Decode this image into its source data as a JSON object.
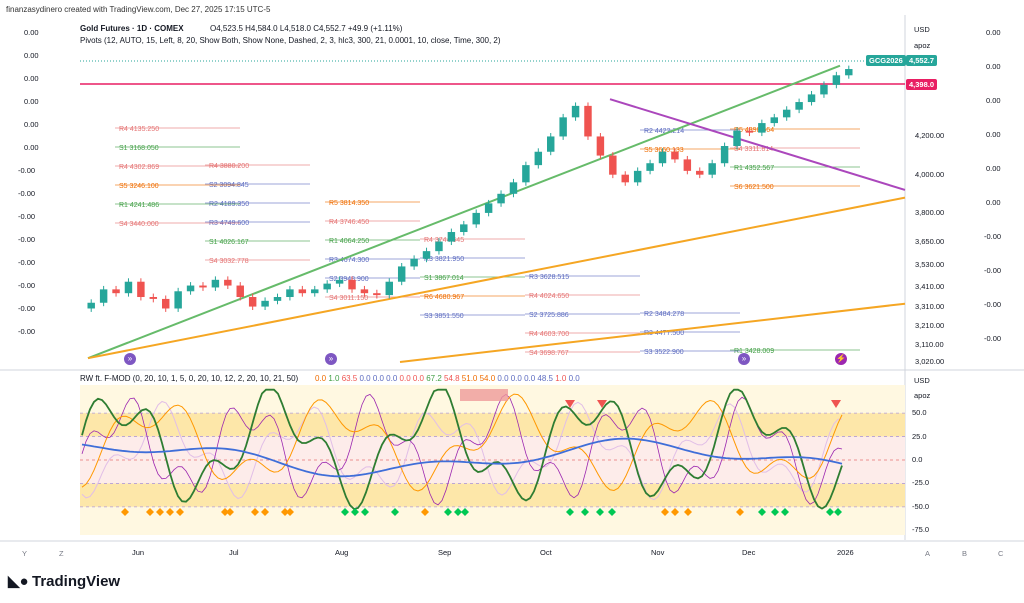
{
  "header": {
    "created_by": "finanzasydinero created with TradingView.com, Dec 27, 2025 17:15 UTC-5",
    "symbol_line": "Gold Futures · 1D · COMEX",
    "ohlc": "O4,523.5  H4,584.0  L4,518.0  C4,552.7  +49.9 (+1.11%)",
    "pivots_line": "Pivots (12, AUTO, 15, Left, 8, 20, Show Both, Show None, Dashed, 2, 3, hlc3, 300, 21, 0.0001, 10, close, Time, 300, 2)",
    "indicator_line": "RW ft. F-MOD (0, 20, 10, 1, 5, 0, 20, 10, 12, 2, 20, 10, 21, 50)",
    "indicator_values": [
      "0.0",
      "1.0",
      "63.5",
      "0.0",
      "0.0",
      "0.0",
      "0.0",
      "0.0",
      "67.2",
      "54.8",
      "51.0",
      "54.0",
      "0.0",
      "0.0",
      "0.0",
      "48.5",
      "1.0",
      "0.0"
    ]
  },
  "scale": {
    "currency": "USD",
    "mode": "apoz",
    "price_ticks": [
      "4,200.00",
      "4,000.00",
      "3,800.00",
      "3,650.00",
      "3,530.00",
      "3,410.00",
      "3,310.00",
      "3,210.00",
      "3,110.00",
      "3,020.00"
    ],
    "osc_ticks": [
      "50.0",
      "25.0",
      "0.0",
      "-25.0",
      "-50.0",
      "-75.0"
    ],
    "symbol_badge": "GCG2026",
    "last_price_badge": "4,552.7",
    "marker_price_badge": "4,398.0",
    "left_values": [
      "0.00",
      "0.00",
      "0.00",
      "0.00",
      "0.00",
      "0.00",
      "-0.00",
      "-0.00",
      "-0.00",
      "-0.00",
      "-0.00",
      "-0.00",
      "-0.00",
      "-0.00"
    ],
    "right_values": [
      "0.00",
      "0.00",
      "0.00",
      "0.00",
      "0.00",
      "0.00",
      "-0.00",
      "-0.00",
      "-0.00",
      "-0.00"
    ]
  },
  "time_axis": [
    "Jun",
    "Jul",
    "Aug",
    "Sep",
    "Oct",
    "Nov",
    "Dec",
    "2026"
  ],
  "bottom_icons": [
    "Y",
    "Z",
    "A",
    "B",
    "C"
  ],
  "brand": "TradingView",
  "pivot_labels": [
    {
      "t": "R4",
      "v": "4135.250",
      "c": "#e57373"
    },
    {
      "t": "R4",
      "v": "3880.200",
      "c": "#e57373"
    },
    {
      "t": "R5",
      "v": "3814.350",
      "c": "#ef6c00"
    },
    {
      "t": "R4",
      "v": "3744.645",
      "c": "#e57373"
    },
    {
      "t": "R3",
      "v": "3628.515",
      "c": "#5c6bc0"
    },
    {
      "t": "R2",
      "v": "3484.278",
      "c": "#5c6bc0"
    },
    {
      "t": "R1",
      "v": "3428.009",
      "c": "#43a047"
    },
    {
      "t": "S1",
      "v": "3168.050",
      "c": "#43a047"
    },
    {
      "t": "S2",
      "v": "3094.845",
      "c": "#5c6bc0"
    },
    {
      "t": "R4",
      "v": "3746.450",
      "c": "#e57373"
    },
    {
      "t": "R3",
      "v": "3821.950",
      "c": "#5c6bc0"
    },
    {
      "t": "R4",
      "v": "4024.650",
      "c": "#e57373"
    },
    {
      "t": "R3",
      "v": "4477.500",
      "c": "#5c6bc0"
    },
    {
      "t": "R5",
      "v": "4398.664",
      "c": "#ef6c00"
    },
    {
      "t": "R4",
      "v": "4302.869",
      "c": "#e57373"
    },
    {
      "t": "R2",
      "v": "4189.350",
      "c": "#5c6bc0"
    },
    {
      "t": "R1",
      "v": "4064.250",
      "c": "#43a047"
    },
    {
      "t": "S1",
      "v": "3867.014",
      "c": "#43a047"
    },
    {
      "t": "S2",
      "v": "3725.886",
      "c": "#5c6bc0"
    },
    {
      "t": "S3",
      "v": "3522.900",
      "c": "#5c6bc0"
    },
    {
      "t": "S4",
      "v": "3311.814",
      "c": "#e57373"
    },
    {
      "t": "S5",
      "v": "3246.100",
      "c": "#ef6c00"
    },
    {
      "t": "R3",
      "v": "4749.600",
      "c": "#5c6bc0"
    },
    {
      "t": "R3",
      "v": "4674.300",
      "c": "#5c6bc0"
    },
    {
      "t": "R6",
      "v": "4680.967",
      "c": "#ef6c00"
    },
    {
      "t": "R4",
      "v": "4603.700",
      "c": "#e57373"
    },
    {
      "t": "R2",
      "v": "4422.214",
      "c": "#5c6bc0"
    },
    {
      "t": "R1",
      "v": "4352.567",
      "c": "#43a047"
    },
    {
      "t": "R1",
      "v": "4241.486",
      "c": "#43a047"
    },
    {
      "t": "S1",
      "v": "4026.167",
      "c": "#43a047"
    },
    {
      "t": "S2",
      "v": "3948.900",
      "c": "#5c6bc0"
    },
    {
      "t": "S3",
      "v": "3851.550",
      "c": "#5c6bc0"
    },
    {
      "t": "S4",
      "v": "3698.767",
      "c": "#e57373"
    },
    {
      "t": "S5",
      "v": "3660.133",
      "c": "#ef6c00"
    },
    {
      "t": "S6",
      "v": "3621.500",
      "c": "#ef6c00"
    },
    {
      "t": "S4",
      "v": "3440.000",
      "c": "#e57373"
    },
    {
      "t": "S4",
      "v": "3032.778",
      "c": "#e57373"
    },
    {
      "t": "S4",
      "v": "3011.150",
      "c": "#e57373"
    }
  ],
  "chart_data": {
    "type": "candlestick",
    "title": "Gold Futures · 1D · COMEX",
    "x": [
      "Jun",
      "Jul",
      "Aug",
      "Sep",
      "Oct",
      "Nov",
      "Dec",
      "2026"
    ],
    "ylim": [
      3020,
      4600
    ],
    "close_approx": [
      3330,
      3400,
      3380,
      3440,
      3360,
      3350,
      3300,
      3390,
      3420,
      3410,
      3450,
      3420,
      3360,
      3310,
      3340,
      3360,
      3400,
      3380,
      3400,
      3430,
      3450,
      3400,
      3380,
      3370,
      3440,
      3520,
      3560,
      3600,
      3650,
      3700,
      3740,
      3800,
      3850,
      3900,
      3960,
      4050,
      4120,
      4200,
      4300,
      4360,
      4200,
      4100,
      4000,
      3960,
      4020,
      4060,
      4120,
      4080,
      4020,
      4000,
      4060,
      4150,
      4230,
      4220,
      4270,
      4300,
      4340,
      4380,
      4420,
      4470,
      4520,
      4552.7
    ],
    "last_close": 4552.7,
    "oscillator": {
      "name": "RW ft. F-MOD",
      "ylim": [
        -80,
        80
      ],
      "levels": [
        50,
        25,
        0,
        -25,
        -50
      ]
    }
  },
  "colors": {
    "up": "#26a69a",
    "down": "#ef5350",
    "trend_green": "#66bb6a",
    "trend_orange": "#f5a623",
    "trend_purple": "#ab47bc",
    "pivot_red": "#e91e63",
    "osc_blue": "#3f6ed8",
    "osc_orange": "#ff9800",
    "osc_green": "#2e7d32"
  }
}
